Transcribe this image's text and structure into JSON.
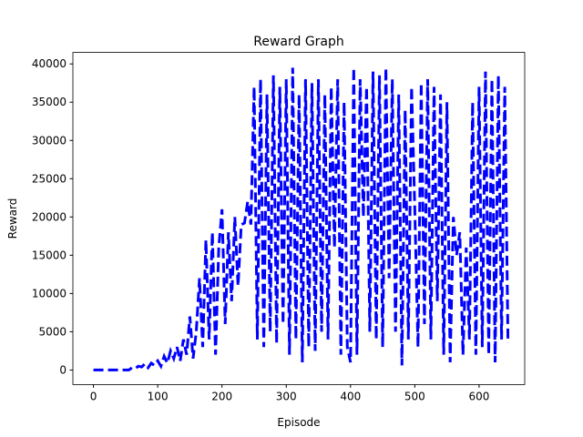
{
  "chart_data": {
    "type": "line",
    "title": "Reward Graph",
    "x_label": "Episode",
    "y_label": "Reward",
    "x": [
      0,
      5,
      10,
      15,
      20,
      25,
      30,
      35,
      40,
      45,
      50,
      55,
      60,
      65,
      70,
      75,
      80,
      85,
      90,
      95,
      100,
      105,
      110,
      115,
      120,
      125,
      130,
      135,
      140,
      145,
      150,
      155,
      160,
      165,
      170,
      175,
      180,
      185,
      190,
      195,
      200,
      205,
      210,
      215,
      220,
      225,
      230,
      235,
      240,
      245,
      250,
      255,
      260,
      265,
      270,
      275,
      280,
      285,
      290,
      295,
      300,
      305,
      310,
      315,
      320,
      325,
      330,
      335,
      340,
      345,
      350,
      355,
      360,
      365,
      370,
      375,
      380,
      385,
      390,
      395,
      400,
      405,
      410,
      415,
      420,
      425,
      430,
      435,
      440,
      445,
      450,
      455,
      460,
      465,
      470,
      475,
      480,
      485,
      490,
      495,
      500,
      505,
      510,
      515,
      520,
      525,
      530,
      535,
      540,
      545,
      550,
      555,
      560,
      565,
      570,
      575,
      580,
      585,
      590,
      595,
      600,
      605,
      610,
      615,
      620,
      625,
      630,
      635,
      640,
      645
    ],
    "series": [
      {
        "name": "Reward",
        "color": "#0000ff",
        "values": [
          0,
          0,
          0,
          0,
          0,
          0,
          0,
          0,
          0,
          0,
          0,
          0,
          300,
          200,
          500,
          400,
          800,
          300,
          900,
          600,
          1200,
          500,
          1800,
          900,
          2500,
          1500,
          3000,
          1200,
          4000,
          2000,
          7000,
          1500,
          5000,
          12000,
          3000,
          17000,
          4000,
          18000,
          2000,
          16000,
          21000,
          6000,
          18000,
          9000,
          20000,
          11000,
          19000,
          19200,
          22000,
          19000,
          37000,
          4000,
          38000,
          3000,
          36000,
          5000,
          38500,
          3500,
          37000,
          6000,
          38000,
          2000,
          39500,
          4000,
          36000,
          1000,
          38000,
          3000,
          37500,
          2500,
          38000,
          5000,
          36000,
          4000,
          37000,
          16000,
          38000,
          2000,
          35000,
          3000,
          1000,
          39500,
          2000,
          38000,
          20000,
          37000,
          5000,
          39000,
          4000,
          38500,
          3000,
          39500,
          12000,
          38000,
          5000,
          36000,
          600,
          34000,
          4000,
          37000,
          21000,
          3000,
          37500,
          6000,
          38000,
          4000,
          37000,
          9000,
          36000,
          2000,
          35000,
          1000,
          20000,
          15000,
          18000,
          2000,
          16000,
          4000,
          35000,
          2000,
          37000,
          3000,
          39000,
          2000,
          38000,
          1000,
          38500,
          4000,
          37000,
          3500
        ]
      }
    ],
    "xlim": [
      -32,
      671
    ],
    "ylim": [
      -1900,
      41500
    ],
    "xticks": [
      0,
      100,
      200,
      300,
      400,
      500,
      600
    ],
    "yticks": [
      0,
      5000,
      10000,
      15000,
      20000,
      25000,
      30000,
      35000,
      40000
    ],
    "grid": false
  }
}
